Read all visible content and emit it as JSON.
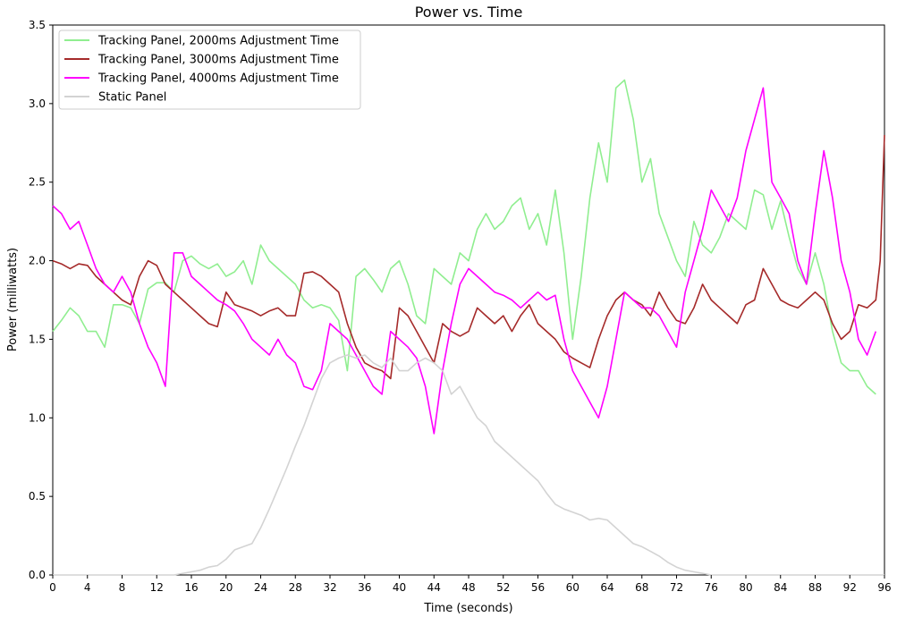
{
  "chart_data": {
    "type": "line",
    "title": "Power vs. Time",
    "xlabel": "Time (seconds)",
    "ylabel": "Power (milliwatts)",
    "xlim": [
      0,
      96
    ],
    "ylim": [
      0,
      3.5
    ],
    "xticks": [
      0,
      4,
      8,
      12,
      16,
      20,
      24,
      28,
      32,
      36,
      40,
      44,
      48,
      52,
      56,
      60,
      64,
      68,
      72,
      76,
      80,
      84,
      88,
      92,
      96
    ],
    "yticks": [
      0.0,
      0.5,
      1.0,
      1.5,
      2.0,
      2.5,
      3.0,
      3.5
    ],
    "ytick_labels": [
      "0.0",
      "0.5",
      "1.0",
      "1.5",
      "2.0",
      "2.5",
      "3.0",
      "3.5"
    ],
    "grid": false,
    "legend_position": "top-left",
    "series": [
      {
        "name": "Tracking Panel, 2000ms Adjustment Time",
        "color": "#90ee90",
        "x": [
          0,
          1,
          2,
          3,
          4,
          5,
          6,
          7,
          8,
          9,
          10,
          11,
          12,
          13,
          14,
          15,
          16,
          17,
          18,
          19,
          20,
          21,
          22,
          23,
          24,
          25,
          26,
          27,
          28,
          29,
          30,
          31,
          32,
          33,
          34,
          35,
          36,
          37,
          38,
          39,
          40,
          41,
          42,
          43,
          44,
          45,
          46,
          47,
          48,
          49,
          50,
          51,
          52,
          53,
          54,
          55,
          56,
          57,
          58,
          59,
          60,
          61,
          62,
          63,
          64,
          65,
          66,
          67,
          68,
          69,
          70,
          71,
          72,
          73,
          74,
          75,
          76,
          77,
          78,
          79,
          80,
          81,
          82,
          83,
          84,
          85,
          86,
          87,
          88,
          89,
          90,
          91,
          92,
          93,
          94,
          95
        ],
        "y": [
          1.55,
          1.62,
          1.7,
          1.65,
          1.55,
          1.55,
          1.45,
          1.72,
          1.72,
          1.7,
          1.6,
          1.82,
          1.86,
          1.86,
          1.8,
          2.0,
          2.03,
          1.98,
          1.95,
          1.98,
          1.9,
          1.93,
          2.0,
          1.85,
          2.1,
          2.0,
          1.95,
          1.9,
          1.85,
          1.75,
          1.7,
          1.72,
          1.7,
          1.62,
          1.3,
          1.9,
          1.95,
          1.88,
          1.8,
          1.95,
          2.0,
          1.85,
          1.65,
          1.6,
          1.95,
          1.9,
          1.85,
          2.05,
          2.0,
          2.2,
          2.3,
          2.2,
          2.25,
          2.35,
          2.4,
          2.2,
          2.3,
          2.1,
          2.45,
          2.05,
          1.5,
          1.9,
          2.4,
          2.75,
          2.5,
          3.1,
          3.15,
          2.9,
          2.5,
          2.65,
          2.3,
          2.15,
          2.0,
          1.9,
          2.25,
          2.1,
          2.05,
          2.15,
          2.3,
          2.25,
          2.2,
          2.45,
          2.42,
          2.2,
          2.38,
          2.15,
          1.95,
          1.85,
          2.05,
          1.85,
          1.55,
          1.35,
          1.3,
          1.3,
          1.2,
          1.15
        ]
      },
      {
        "name": "Tracking Panel, 3000ms Adjustment Time",
        "color": "#a52a2a",
        "x": [
          0,
          1,
          2,
          3,
          4,
          5,
          6,
          7,
          8,
          9,
          10,
          11,
          12,
          13,
          14,
          15,
          16,
          17,
          18,
          19,
          20,
          21,
          22,
          23,
          24,
          25,
          26,
          27,
          28,
          29,
          30,
          31,
          32,
          33,
          34,
          35,
          36,
          37,
          38,
          39,
          40,
          41,
          42,
          43,
          44,
          45,
          46,
          47,
          48,
          49,
          50,
          51,
          52,
          53,
          54,
          55,
          56,
          57,
          58,
          59,
          60,
          61,
          62,
          63,
          64,
          65,
          66,
          67,
          68,
          69,
          70,
          71,
          72,
          73,
          74,
          75,
          76,
          77,
          78,
          79,
          80,
          81,
          82,
          83,
          84,
          85,
          86,
          87,
          88,
          89,
          90,
          91,
          92,
          93,
          94,
          95,
          95.5,
          96
        ],
        "y": [
          2.0,
          1.98,
          1.95,
          1.98,
          1.97,
          1.9,
          1.85,
          1.8,
          1.75,
          1.72,
          1.9,
          2.0,
          1.97,
          1.85,
          1.8,
          1.75,
          1.7,
          1.65,
          1.6,
          1.58,
          1.8,
          1.72,
          1.7,
          1.68,
          1.65,
          1.68,
          1.7,
          1.65,
          1.65,
          1.92,
          1.93,
          1.9,
          1.85,
          1.8,
          1.6,
          1.45,
          1.35,
          1.32,
          1.3,
          1.25,
          1.7,
          1.65,
          1.55,
          1.45,
          1.35,
          1.6,
          1.55,
          1.52,
          1.55,
          1.7,
          1.65,
          1.6,
          1.65,
          1.55,
          1.65,
          1.72,
          1.6,
          1.55,
          1.5,
          1.42,
          1.38,
          1.35,
          1.32,
          1.5,
          1.65,
          1.75,
          1.8,
          1.75,
          1.72,
          1.65,
          1.8,
          1.7,
          1.62,
          1.6,
          1.7,
          1.85,
          1.75,
          1.7,
          1.65,
          1.6,
          1.72,
          1.75,
          1.95,
          1.85,
          1.75,
          1.72,
          1.7,
          1.75,
          1.8,
          1.75,
          1.6,
          1.5,
          1.55,
          1.72,
          1.7,
          1.75,
          2.0,
          2.8
        ]
      },
      {
        "name": "Tracking Panel, 4000ms Adjustment Time",
        "color": "#ff00ff",
        "x": [
          0,
          1,
          2,
          3,
          4,
          5,
          6,
          7,
          8,
          9,
          10,
          11,
          12,
          13,
          14,
          15,
          16,
          17,
          18,
          19,
          20,
          21,
          22,
          23,
          24,
          25,
          26,
          27,
          28,
          29,
          30,
          31,
          32,
          33,
          34,
          35,
          36,
          37,
          38,
          39,
          40,
          41,
          42,
          43,
          44,
          45,
          46,
          47,
          48,
          49,
          50,
          51,
          52,
          53,
          54,
          55,
          56,
          57,
          58,
          59,
          60,
          61,
          62,
          63,
          64,
          65,
          66,
          67,
          68,
          69,
          70,
          71,
          72,
          73,
          74,
          75,
          76,
          77,
          78,
          79,
          80,
          81,
          82,
          83,
          84,
          85,
          86,
          87,
          88,
          89,
          90,
          91,
          92,
          93,
          94,
          95
        ],
        "y": [
          2.35,
          2.3,
          2.2,
          2.25,
          2.1,
          1.95,
          1.85,
          1.8,
          1.9,
          1.8,
          1.6,
          1.45,
          1.35,
          1.2,
          2.05,
          2.05,
          1.9,
          1.85,
          1.8,
          1.75,
          1.72,
          1.68,
          1.6,
          1.5,
          1.45,
          1.4,
          1.5,
          1.4,
          1.35,
          1.2,
          1.18,
          1.3,
          1.6,
          1.55,
          1.5,
          1.4,
          1.3,
          1.2,
          1.15,
          1.55,
          1.5,
          1.45,
          1.38,
          1.2,
          0.9,
          1.3,
          1.6,
          1.85,
          1.95,
          1.9,
          1.85,
          1.8,
          1.78,
          1.75,
          1.7,
          1.75,
          1.8,
          1.75,
          1.78,
          1.5,
          1.3,
          1.2,
          1.1,
          1.0,
          1.2,
          1.5,
          1.8,
          1.75,
          1.7,
          1.7,
          1.65,
          1.55,
          1.45,
          1.8,
          2.0,
          2.2,
          2.45,
          2.35,
          2.25,
          2.4,
          2.7,
          2.9,
          3.1,
          2.5,
          2.4,
          2.3,
          2.0,
          1.85,
          2.3,
          2.7,
          2.4,
          2.0,
          1.8,
          1.5,
          1.4,
          1.55
        ]
      },
      {
        "name": "Static Panel",
        "color": "#d3d3d3",
        "x": [
          0,
          14,
          16,
          17,
          18,
          19,
          20,
          21,
          22,
          23,
          24,
          25,
          26,
          27,
          28,
          29,
          30,
          31,
          32,
          33,
          34,
          35,
          36,
          37,
          38,
          39,
          40,
          41,
          42,
          43,
          44,
          45,
          46,
          47,
          48,
          49,
          50,
          51,
          52,
          53,
          54,
          55,
          56,
          57,
          58,
          59,
          60,
          61,
          62,
          63,
          64,
          65,
          66,
          67,
          68,
          69,
          70,
          71,
          72,
          73,
          74,
          75,
          76,
          77,
          78,
          96
        ],
        "y": [
          0.0,
          0.0,
          0.02,
          0.03,
          0.05,
          0.06,
          0.1,
          0.16,
          0.18,
          0.2,
          0.3,
          0.42,
          0.55,
          0.68,
          0.82,
          0.95,
          1.1,
          1.25,
          1.35,
          1.38,
          1.4,
          1.38,
          1.4,
          1.35,
          1.32,
          1.38,
          1.3,
          1.3,
          1.35,
          1.38,
          1.35,
          1.3,
          1.15,
          1.2,
          1.1,
          1.0,
          0.95,
          0.85,
          0.8,
          0.75,
          0.7,
          0.65,
          0.6,
          0.52,
          0.45,
          0.42,
          0.4,
          0.38,
          0.35,
          0.36,
          0.35,
          0.3,
          0.25,
          0.2,
          0.18,
          0.15,
          0.12,
          0.08,
          0.05,
          0.03,
          0.02,
          0.01,
          0.0,
          0.0,
          0.0,
          0.0
        ]
      }
    ]
  }
}
